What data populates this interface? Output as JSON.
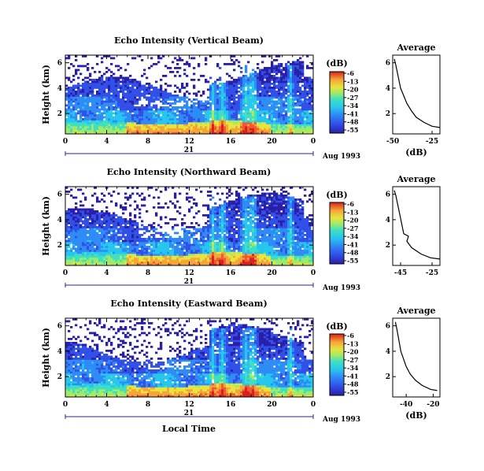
{
  "colormap": [
    "#2a1fa8",
    "#3050e8",
    "#2f8cf5",
    "#27c6ee",
    "#3fe0c0",
    "#a0ea6a",
    "#e7e43c",
    "#f5a53a",
    "#ef5a30",
    "#d8211c"
  ],
  "shared": {
    "xlabel": "Local Time",
    "x_ticks": [
      "0",
      "4",
      "8",
      "12",
      "16",
      "20",
      "0"
    ],
    "date_day": "21",
    "date_label": "Aug 1993",
    "avg_xlabel": "(dB)"
  },
  "chart_data": [
    {
      "type": "heatmap",
      "title": "Echo Intensity (Vertical Beam)",
      "ylabel": "Height (km)",
      "xlim": [
        0,
        24
      ],
      "ylim": [
        0.4,
        6.6
      ],
      "y_ticks": [
        "2",
        "4",
        "6"
      ],
      "colorbar_label": "(dB)",
      "colorbar_ticks": [
        "-6",
        "-13",
        "-20",
        "-27",
        "-34",
        "-41",
        "-48",
        "-55"
      ],
      "avg_title": "Average",
      "avg_ticks": [
        "-50",
        "-25"
      ],
      "avg_xlim": [
        -50,
        -20
      ],
      "avg_profile": [
        [
          -20,
          0.9
        ],
        [
          -25,
          1.0
        ],
        [
          -30,
          1.3
        ],
        [
          -35,
          1.7
        ],
        [
          -38,
          2.2
        ],
        [
          -41,
          2.8
        ],
        [
          -43,
          3.4
        ],
        [
          -45,
          4.0
        ],
        [
          -46,
          4.6
        ],
        [
          -47,
          5.2
        ],
        [
          -48,
          5.8
        ],
        [
          -49,
          6.3
        ]
      ]
    },
    {
      "type": "heatmap",
      "title": "Echo Intensity (Northward Beam)",
      "ylabel": "Height (km)",
      "xlim": [
        0,
        24
      ],
      "ylim": [
        0.4,
        6.6
      ],
      "y_ticks": [
        "2",
        "4",
        "6"
      ],
      "colorbar_label": "(dB)",
      "colorbar_ticks": [
        "-6",
        "-13",
        "-20",
        "-27",
        "-34",
        "-41",
        "-48",
        "-55"
      ],
      "avg_title": "Average",
      "avg_ticks": [
        "-45",
        "-25"
      ],
      "avg_xlim": [
        -50,
        -20
      ],
      "avg_profile": [
        [
          -20,
          0.9
        ],
        [
          -26,
          1.0
        ],
        [
          -32,
          1.3
        ],
        [
          -38,
          1.8
        ],
        [
          -41,
          2.3
        ],
        [
          -40,
          2.7
        ],
        [
          -43,
          2.9
        ],
        [
          -44,
          3.5
        ],
        [
          -45,
          4.1
        ],
        [
          -46,
          4.7
        ],
        [
          -47,
          5.3
        ],
        [
          -48,
          5.9
        ],
        [
          -49,
          6.3
        ]
      ]
    },
    {
      "type": "heatmap",
      "title": "Echo Intensity (Eastward Beam)",
      "ylabel": "Height (km)",
      "xlim": [
        0,
        24
      ],
      "ylim": [
        0.4,
        6.6
      ],
      "y_ticks": [
        "2",
        "4",
        "6"
      ],
      "colorbar_label": "(dB)",
      "colorbar_ticks": [
        "-6",
        "-13",
        "-20",
        "-27",
        "-34",
        "-41",
        "-48",
        "-55"
      ],
      "avg_title": "Average",
      "avg_ticks": [
        "-40",
        "-20"
      ],
      "avg_xlim": [
        -50,
        -15
      ],
      "avg_profile": [
        [
          -17,
          0.9
        ],
        [
          -22,
          1.0
        ],
        [
          -28,
          1.3
        ],
        [
          -33,
          1.7
        ],
        [
          -37,
          2.2
        ],
        [
          -40,
          2.8
        ],
        [
          -42,
          3.4
        ],
        [
          -44,
          4.0
        ],
        [
          -45,
          4.6
        ],
        [
          -46,
          5.2
        ],
        [
          -47,
          5.8
        ],
        [
          -48,
          6.3
        ]
      ]
    }
  ]
}
